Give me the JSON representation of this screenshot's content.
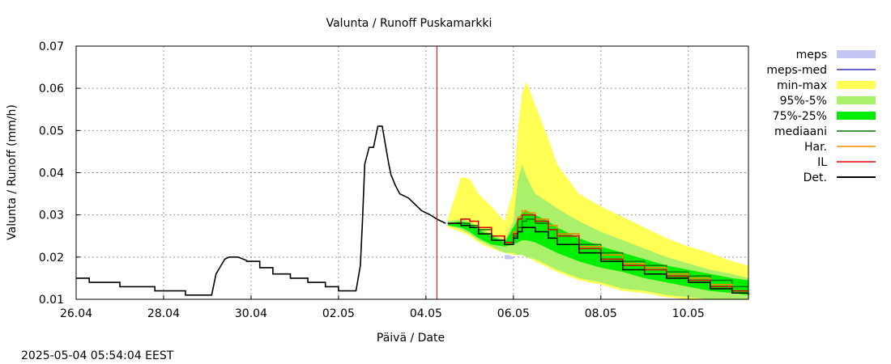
{
  "chart_data": {
    "type": "area",
    "title": "Valunta / Runoff  Puskamarkki",
    "xlabel": "Päivä / Date",
    "ylabel": "Valunta / Runoff (mm/h)",
    "ylim": [
      0.01,
      0.07
    ],
    "xlim": [
      0,
      15.375
    ],
    "grid": true,
    "legend_position": "right",
    "timestamp": "2025-05-04  05:54:04 EEST",
    "now_marker_day": 8.25,
    "y_ticks": [
      {
        "v": 0.01,
        "label": "0.01"
      },
      {
        "v": 0.02,
        "label": "0.02"
      },
      {
        "v": 0.03,
        "label": "0.03"
      },
      {
        "v": 0.04,
        "label": "0.04"
      },
      {
        "v": 0.05,
        "label": "0.05"
      },
      {
        "v": 0.06,
        "label": "0.06"
      },
      {
        "v": 0.07,
        "label": "0.07"
      }
    ],
    "x_ticks": [
      {
        "v": 0,
        "label": "26.04"
      },
      {
        "v": 2,
        "label": "28.04"
      },
      {
        "v": 4,
        "label": "30.04"
      },
      {
        "v": 6,
        "label": "02.05"
      },
      {
        "v": 8,
        "label": "04.05"
      },
      {
        "v": 10,
        "label": "06.05"
      },
      {
        "v": 12,
        "label": "08.05"
      },
      {
        "v": 14,
        "label": "10.05"
      }
    ],
    "legend": [
      {
        "name": "meps",
        "type": "area",
        "color": "#c6c6f5"
      },
      {
        "name": "meps-med",
        "type": "line",
        "color": "#3333bb"
      },
      {
        "name": "min-max",
        "type": "area",
        "color": "#ffff55"
      },
      {
        "name": "95%-5%",
        "type": "area",
        "color": "#aaf06a"
      },
      {
        "name": "75%-25%",
        "type": "area",
        "color": "#00ee00"
      },
      {
        "name": "mediaani",
        "type": "line",
        "color": "#007700"
      },
      {
        "name": "Har.",
        "type": "line",
        "color": "#ff8800"
      },
      {
        "name": "IL",
        "type": "line",
        "color": "#dd0000"
      },
      {
        "name": "Det.",
        "type": "line",
        "color": "#000000"
      }
    ],
    "observed_series": {
      "name": "Det.",
      "x": [
        0,
        0.3,
        0.3,
        1.0,
        1.0,
        1.8,
        1.8,
        2.5,
        2.5,
        3.1,
        3.1,
        3.2,
        3.4,
        3.5,
        3.7,
        3.9,
        3.9,
        4.2,
        4.2,
        4.5,
        4.5,
        4.9,
        4.9,
        5.3,
        5.3,
        5.7,
        5.7,
        6.0,
        6.0,
        6.4,
        6.5,
        6.55,
        6.6,
        6.7,
        6.8,
        6.9,
        7.0,
        7.05,
        7.15,
        7.2,
        7.3,
        7.4,
        7.5,
        7.6,
        7.7,
        7.8,
        7.9,
        8.0,
        8.1,
        8.25,
        8.45
      ],
      "y": [
        0.015,
        0.015,
        0.014,
        0.014,
        0.013,
        0.013,
        0.012,
        0.012,
        0.011,
        0.011,
        0.011,
        0.016,
        0.0195,
        0.02,
        0.02,
        0.0192,
        0.019,
        0.019,
        0.0175,
        0.0175,
        0.016,
        0.016,
        0.015,
        0.015,
        0.014,
        0.014,
        0.013,
        0.013,
        0.012,
        0.012,
        0.018,
        0.029,
        0.042,
        0.046,
        0.046,
        0.051,
        0.051,
        0.048,
        0.042,
        0.0395,
        0.037,
        0.035,
        0.0345,
        0.034,
        0.033,
        0.032,
        0.031,
        0.0305,
        0.03,
        0.029,
        0.028
      ]
    },
    "forecast_x": [
      8.5,
      8.8,
      9.0,
      9.2,
      9.5,
      9.8,
      10.0,
      10.1,
      10.2,
      10.3,
      10.5,
      10.8,
      11.0,
      11.5,
      12.0,
      12.5,
      13.0,
      13.5,
      14.0,
      14.5,
      15.0,
      15.375
    ],
    "bands": [
      {
        "name": "min-max",
        "color": "#ffff55",
        "upper": [
          0.029,
          0.039,
          0.0385,
          0.035,
          0.032,
          0.0285,
          0.036,
          0.05,
          0.059,
          0.0615,
          0.056,
          0.048,
          0.042,
          0.035,
          0.032,
          0.0295,
          0.027,
          0.0245,
          0.0225,
          0.021,
          0.019,
          0.018
        ],
        "lower": [
          0.027,
          0.026,
          0.025,
          0.0235,
          0.022,
          0.021,
          0.0205,
          0.0205,
          0.0205,
          0.02,
          0.019,
          0.0175,
          0.0165,
          0.0145,
          0.0135,
          0.012,
          0.0115,
          0.0105,
          0.01,
          0.01,
          0.01,
          0.01
        ]
      },
      {
        "name": "95%-5%",
        "color": "#aaf06a",
        "upper": [
          0.0285,
          0.029,
          0.0285,
          0.027,
          0.0255,
          0.024,
          0.0285,
          0.038,
          0.042,
          0.039,
          0.035,
          0.033,
          0.0315,
          0.0285,
          0.026,
          0.024,
          0.022,
          0.02,
          0.0185,
          0.017,
          0.016,
          0.015
        ],
        "lower": [
          0.0275,
          0.0265,
          0.0255,
          0.024,
          0.0225,
          0.021,
          0.021,
          0.0205,
          0.0205,
          0.02,
          0.0195,
          0.018,
          0.017,
          0.015,
          0.014,
          0.0125,
          0.012,
          0.011,
          0.0105,
          0.01,
          0.01,
          0.01
        ]
      },
      {
        "name": "75%-25%",
        "color": "#00ee00",
        "upper": [
          0.028,
          0.0285,
          0.028,
          0.0265,
          0.025,
          0.0235,
          0.027,
          0.029,
          0.0305,
          0.031,
          0.03,
          0.0285,
          0.027,
          0.0245,
          0.0225,
          0.021,
          0.0195,
          0.018,
          0.017,
          0.016,
          0.015,
          0.0145
        ],
        "lower": [
          0.0275,
          0.027,
          0.026,
          0.0245,
          0.023,
          0.0225,
          0.023,
          0.0235,
          0.024,
          0.024,
          0.0235,
          0.022,
          0.021,
          0.019,
          0.0175,
          0.0165,
          0.015,
          0.014,
          0.013,
          0.012,
          0.0115,
          0.011
        ]
      }
    ],
    "lines": [
      {
        "name": "mediaani",
        "color": "#007700",
        "y": [
          0.028,
          0.028,
          0.0275,
          0.0265,
          0.025,
          0.0235,
          0.025,
          0.027,
          0.0285,
          0.029,
          0.028,
          0.0265,
          0.0255,
          0.023,
          0.021,
          0.019,
          0.018,
          0.0165,
          0.0155,
          0.0145,
          0.013,
          0.013
        ]
      },
      {
        "name": "Har.",
        "color": "#ff8800",
        "y": [
          0.028,
          0.029,
          0.0285,
          0.027,
          0.025,
          0.0235,
          0.026,
          0.0295,
          0.031,
          0.0305,
          0.029,
          0.0275,
          0.0255,
          0.0225,
          0.0205,
          0.0185,
          0.0175,
          0.016,
          0.015,
          0.0135,
          0.012,
          0.012
        ]
      },
      {
        "name": "IL",
        "color": "#dd0000",
        "y": [
          0.028,
          0.029,
          0.0285,
          0.027,
          0.025,
          0.0235,
          0.0255,
          0.029,
          0.03,
          0.03,
          0.0285,
          0.0265,
          0.025,
          0.022,
          0.0195,
          0.018,
          0.017,
          0.0155,
          0.0145,
          0.013,
          0.012,
          0.012
        ]
      },
      {
        "name": "Det.",
        "color": "#000000",
        "y": [
          0.028,
          0.0275,
          0.027,
          0.0255,
          0.024,
          0.023,
          0.0245,
          0.026,
          0.027,
          0.027,
          0.026,
          0.0245,
          0.023,
          0.021,
          0.019,
          0.017,
          0.016,
          0.015,
          0.014,
          0.0125,
          0.0115,
          0.011
        ]
      }
    ],
    "meps_band": {
      "name": "meps",
      "color": "#c6c6f5",
      "x": [
        9.8,
        9.9,
        10.0
      ],
      "upper": [
        0.0205,
        0.0205,
        0.02
      ],
      "lower": [
        0.0195,
        0.0195,
        0.0195
      ]
    }
  }
}
